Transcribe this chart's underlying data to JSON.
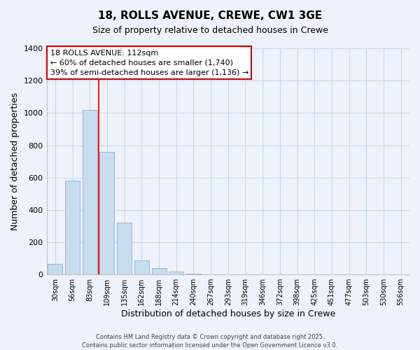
{
  "title": "18, ROLLS AVENUE, CREWE, CW1 3GE",
  "subtitle": "Size of property relative to detached houses in Crewe",
  "xlabel": "Distribution of detached houses by size in Crewe",
  "ylabel": "Number of detached properties",
  "bar_color": "#c8dcf0",
  "bar_edge_color": "#9ab8d8",
  "annotation_box_color": "#cc0000",
  "annotation_line1": "18 ROLLS AVENUE: 112sqm",
  "annotation_line2": "← 60% of detached houses are smaller (1,740)",
  "annotation_line3": "39% of semi-detached houses are larger (1,136) →",
  "grid_color": "#c8d8ec",
  "background_color": "#eef2fc",
  "footer_line1": "Contains HM Land Registry data © Crown copyright and database right 2025.",
  "footer_line2": "Contains public sector information licensed under the Open Government Licence v3.0.",
  "categories": [
    "30sqm",
    "56sqm",
    "83sqm",
    "109sqm",
    "135sqm",
    "162sqm",
    "188sqm",
    "214sqm",
    "240sqm",
    "267sqm",
    "293sqm",
    "319sqm",
    "346sqm",
    "372sqm",
    "398sqm",
    "425sqm",
    "451sqm",
    "477sqm",
    "503sqm",
    "530sqm",
    "556sqm"
  ],
  "values": [
    65,
    580,
    1020,
    760,
    320,
    88,
    40,
    18,
    5,
    0,
    0,
    0,
    0,
    0,
    0,
    0,
    0,
    0,
    0,
    0,
    0
  ],
  "ylim": [
    0,
    1400
  ],
  "yticks": [
    0,
    200,
    400,
    600,
    800,
    1000,
    1200,
    1400
  ],
  "property_bin_index": 3,
  "vline_color": "#cc0000",
  "figsize": [
    6.0,
    5.0
  ],
  "dpi": 100
}
